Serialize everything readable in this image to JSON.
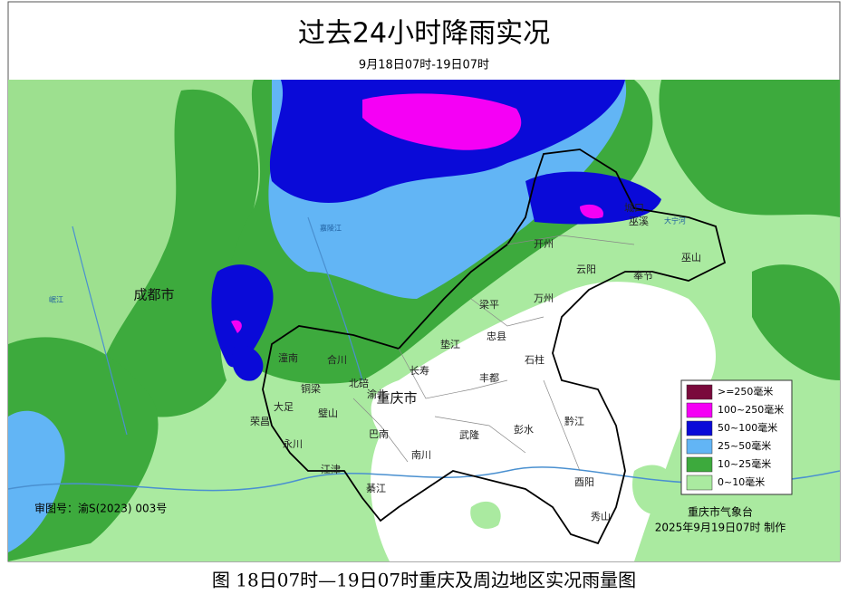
{
  "header": {
    "title": "过去24小时降雨实况",
    "subtitle": "9月18日07时-19日07时"
  },
  "places": [
    "成都市",
    "重庆市",
    "开州",
    "云阳",
    "奉节",
    "巫山",
    "巫溪",
    "梁平",
    "万州",
    "忠县",
    "垫江",
    "石柱",
    "长寿",
    "丰都",
    "合川",
    "潼南",
    "铜梁",
    "北碚",
    "渝北",
    "大足",
    "荣昌",
    "璧山",
    "永川",
    "巴南",
    "南川",
    "武隆",
    "彭水",
    "黔江",
    "酉阳",
    "秀山",
    "江津",
    "綦江",
    "城口",
    "大宁河",
    "嘉陵江",
    "岷江"
  ],
  "legend": {
    "items": [
      {
        "label": ">=250毫米",
        "color": "#7a0a3c"
      },
      {
        "label": "100~250毫米",
        "color": "#f500f5"
      },
      {
        "label": "50~100毫米",
        "color": "#0a0ad8"
      },
      {
        "label": "25~50毫米",
        "color": "#62b5f5"
      },
      {
        "label": "10~25毫米",
        "color": "#3daa3d"
      },
      {
        "label": "0~10毫米",
        "color": "#aaeaa0"
      }
    ]
  },
  "notes": {
    "review_number": "审图号：渝S(2023) 003号",
    "producer": "重庆市气象台",
    "made": "2025年9月19日07时  制作"
  },
  "caption": "图  18日07时—19日07时重庆及周边地区实况雨量图"
}
